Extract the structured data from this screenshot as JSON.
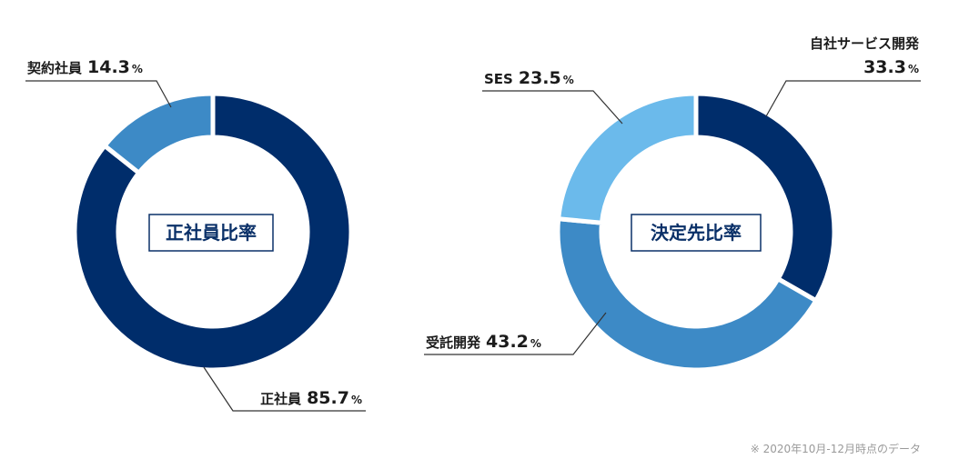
{
  "chart_data": [
    {
      "type": "pie",
      "title": "正社員比率",
      "slices": [
        {
          "label": "正社員",
          "value": 85.7,
          "color": "#002d6b"
        },
        {
          "label": "契約社員",
          "value": 14.3,
          "color": "#3d8ac6"
        }
      ],
      "unit": "%"
    },
    {
      "type": "pie",
      "title": "決定先比率",
      "slices": [
        {
          "label": "自社サービス開発",
          "value": 33.3,
          "color": "#002d6b"
        },
        {
          "label": "受託開発",
          "value": 43.2,
          "color": "#3d8ac6"
        },
        {
          "label": "SES",
          "value": 23.5,
          "color": "#6bbaeb"
        }
      ],
      "unit": "%"
    }
  ],
  "footnote": "※ 2020年10月-12月時点のデータ"
}
